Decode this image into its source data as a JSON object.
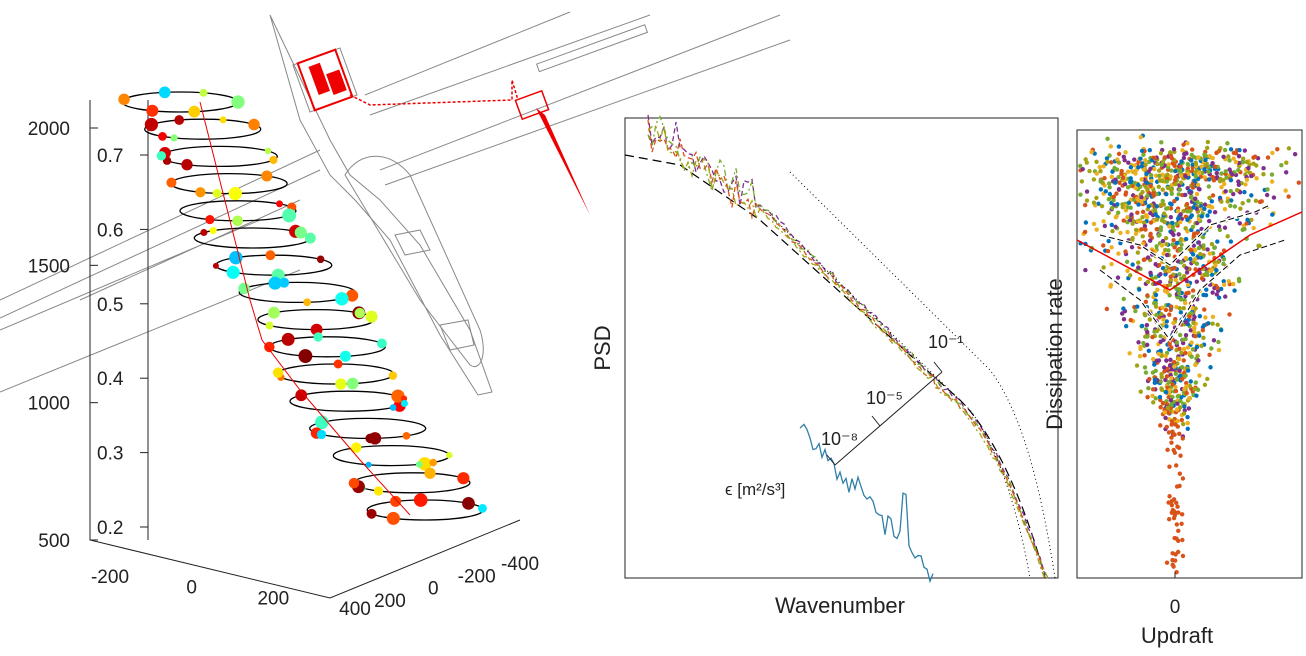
{
  "chart_data": [
    {
      "type": "scatter3d",
      "zticks": [
        500,
        1000,
        1500,
        2000
      ],
      "zlim": [
        500,
        2000
      ],
      "inner_ticks": [
        0.2,
        0.3,
        0.4,
        0.5,
        0.6,
        0.7
      ],
      "inner_lim": [
        0.2,
        0.7
      ],
      "xticks": [
        -200,
        0,
        200,
        400
      ],
      "xlim": [
        -200,
        400
      ],
      "yticks": [
        200,
        0,
        -200,
        -400
      ],
      "ylim": [
        -400,
        200
      ]
    },
    {
      "type": "line",
      "ylabel": "PSD",
      "xlabel": "Wavenumber",
      "log_scale": true,
      "scale_label": "ϵ  [m²/s³]",
      "scale_ticks": [
        "10⁻⁸",
        "10⁻⁵",
        "10⁻¹"
      ]
    },
    {
      "type": "scatter",
      "ylabel": "Dissipation rate",
      "xlabel": "Updraft",
      "xticks": [
        0
      ]
    }
  ]
}
